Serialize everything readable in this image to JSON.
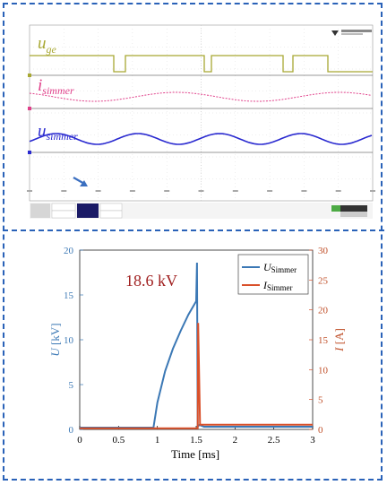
{
  "chart_data": [
    {
      "type": "line",
      "title": "",
      "panel": "oscilloscope",
      "series": [
        {
          "name": "u_ge",
          "label_main": "u",
          "label_sub": "ge",
          "color": "#a8a832"
        },
        {
          "name": "i_simmer",
          "label_main": "i",
          "label_sub": "simmer",
          "color": "#e0408a"
        },
        {
          "name": "u_simmer",
          "label_main": "u",
          "label_sub": "simmer",
          "color": "#2a2ad0"
        }
      ],
      "grid": true
    },
    {
      "type": "line",
      "title": "",
      "annotation": "18.6 kV",
      "xlabel": "Time [ms]",
      "ylabel_left_main": "U",
      "ylabel_left_unit": "[kV]",
      "ylabel_right_main": "I",
      "ylabel_right_unit": "[A]",
      "xlim": [
        0,
        3
      ],
      "ylim_left": [
        0,
        20
      ],
      "ylim_right": [
        0,
        30
      ],
      "xticks": [
        "0",
        "0.5",
        "1",
        "1.5",
        "2",
        "2.5",
        "3"
      ],
      "yticks_left": [
        "0",
        "5",
        "10",
        "15",
        "20"
      ],
      "yticks_right": [
        "0",
        "5",
        "10",
        "15",
        "20",
        "25",
        "30"
      ],
      "legend_position": "top-right",
      "series": [
        {
          "name": "U_Simmer",
          "legend_main": "U",
          "legend_sub": "Simmer",
          "axis": "left",
          "color": "#3b78b5",
          "x": [
            0,
            0.95,
            1.0,
            1.1,
            1.2,
            1.3,
            1.4,
            1.5,
            1.51,
            1.52,
            1.54,
            1.6,
            3.0
          ],
          "y": [
            0.2,
            0.2,
            3.0,
            6.5,
            9.0,
            11.0,
            12.8,
            14.3,
            18.6,
            0.3,
            0.5,
            0.3,
            0.3
          ]
        },
        {
          "name": "I_Simmer",
          "legend_main": "I",
          "legend_sub": "Simmer",
          "axis": "right",
          "color": "#d9502a",
          "x": [
            0,
            1.52,
            1.525,
            1.55,
            1.6,
            3.0
          ],
          "y": [
            0.2,
            0.2,
            17.8,
            0.8,
            0.8,
            0.8
          ]
        }
      ]
    }
  ]
}
